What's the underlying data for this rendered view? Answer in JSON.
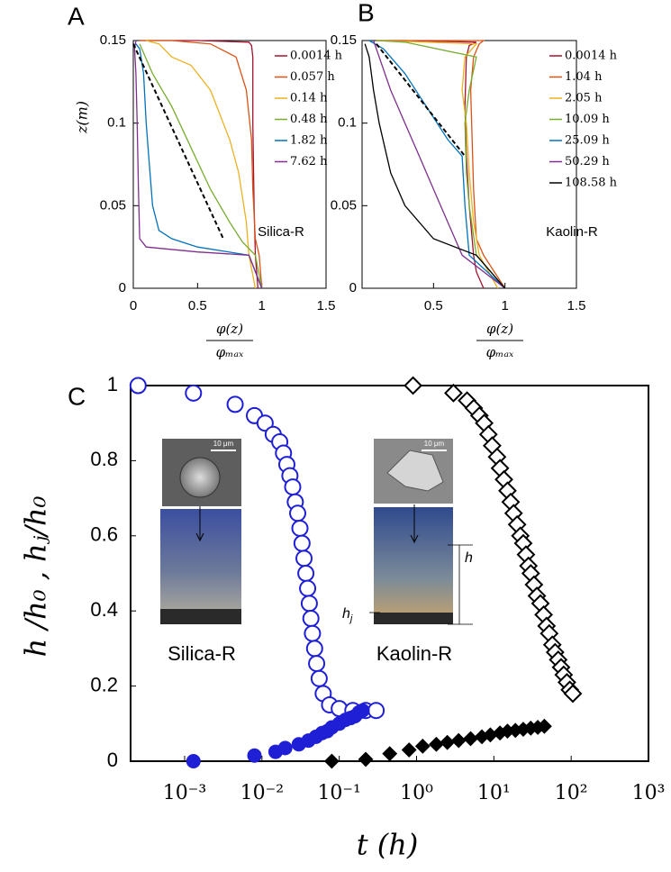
{
  "chart_data": [
    {
      "type": "line",
      "panel": "A",
      "ylabel": "z(m)",
      "xlabel": {
        "numerator": "φ(z)",
        "denominator": "φₘₐₓ"
      },
      "xlim": [
        0,
        1.5
      ],
      "ylim": [
        0,
        0.15
      ],
      "xticks": [
        0,
        0.5,
        1,
        1.5
      ],
      "yticks": [
        0,
        0.05,
        0.1,
        0.15
      ],
      "legend": "upper right",
      "annotation": "Silica-R",
      "series": [
        {
          "name": "0.0014 h",
          "color": "#a2142f",
          "x": [
            0.97,
            0.95,
            0.94,
            0.93,
            0.93,
            0.92,
            0.9,
            0.5,
            0.05
          ],
          "values": [
            0,
            0.02,
            0.05,
            0.1,
            0.14,
            0.147,
            0.149,
            0.15,
            0.15
          ]
        },
        {
          "name": "0.057 h",
          "color": "#d95319",
          "x": [
            1,
            0.98,
            0.95,
            0.93,
            0.92,
            0.88,
            0.8,
            0.6,
            0.3,
            0.05
          ],
          "values": [
            0,
            0.02,
            0.03,
            0.06,
            0.09,
            0.12,
            0.14,
            0.148,
            0.15,
            0.15
          ]
        },
        {
          "name": "0.14 h",
          "color": "#edb120",
          "x": [
            0.95,
            0.9,
            0.88,
            0.82,
            0.75,
            0.7,
            0.6,
            0.45,
            0.3,
            0.2,
            0.1
          ],
          "values": [
            0,
            0.02,
            0.04,
            0.07,
            0.09,
            0.1,
            0.12,
            0.135,
            0.14,
            0.148,
            0.15
          ]
        },
        {
          "name": "0.48 h",
          "color": "#77ac30",
          "x": [
            1,
            0.95,
            0.85,
            0.75,
            0.6,
            0.45,
            0.3,
            0.15,
            0.05
          ],
          "values": [
            0,
            0.02,
            0.028,
            0.04,
            0.06,
            0.085,
            0.11,
            0.13,
            0.148
          ]
        },
        {
          "name": "1.82 h",
          "color": "#0072bd",
          "x": [
            1,
            0.9,
            0.5,
            0.3,
            0.2,
            0.15,
            0.12,
            0.1,
            0.08,
            0.05,
            0.02
          ],
          "values": [
            0,
            0.02,
            0.025,
            0.03,
            0.035,
            0.05,
            0.08,
            0.1,
            0.13,
            0.145,
            0.148
          ]
        },
        {
          "name": "7.62 h",
          "color": "#7e2f8e",
          "x": [
            1,
            0.9,
            0.5,
            0.1,
            0.05,
            0.04,
            0.03,
            0.02,
            0.01,
            0.02
          ],
          "values": [
            0,
            0.02,
            0.022,
            0.025,
            0.03,
            0.06,
            0.1,
            0.13,
            0.145,
            0.15
          ]
        }
      ],
      "fit_line": {
        "x": [
          0,
          0.7
        ],
        "values": [
          0.148,
          0.03
        ]
      }
    },
    {
      "type": "line",
      "panel": "B",
      "xlabel": {
        "numerator": "φ(z)",
        "denominator": "φₘₐₓ"
      },
      "xlim": [
        0,
        1.5
      ],
      "ylim": [
        0,
        0.15
      ],
      "xticks": [
        0.5,
        1,
        1.5
      ],
      "yticks": [
        0,
        0.05,
        0.1,
        0.15
      ],
      "legend": "upper right",
      "annotation": "Kaolin-R",
      "series": [
        {
          "name": "0.0014 h",
          "color": "#a2142f",
          "x": [
            0.85,
            0.8,
            0.78,
            0.75,
            0.73,
            0.72,
            0.73,
            0.75,
            0.8,
            0.3,
            0.1
          ],
          "values": [
            0,
            0.01,
            0.02,
            0.05,
            0.08,
            0.11,
            0.14,
            0.147,
            0.149,
            0.15,
            0.15
          ]
        },
        {
          "name": "1.04 h",
          "color": "#d95319",
          "x": [
            1,
            0.85,
            0.8,
            0.78,
            0.77,
            0.76,
            0.78,
            0.82,
            0.85,
            0.1
          ],
          "values": [
            0,
            0.02,
            0.03,
            0.06,
            0.09,
            0.12,
            0.14,
            0.148,
            0.15,
            0.15
          ]
        },
        {
          "name": "2.05 h",
          "color": "#edb120",
          "x": [
            0.95,
            0.82,
            0.78,
            0.75,
            0.73,
            0.7,
            0.72,
            0.8,
            0.1
          ],
          "values": [
            0,
            0.02,
            0.04,
            0.07,
            0.1,
            0.12,
            0.14,
            0.148,
            0.15
          ]
        },
        {
          "name": "10.09 h",
          "color": "#77ac30",
          "x": [
            1,
            0.8,
            0.75,
            0.73,
            0.72,
            0.75,
            0.8,
            0.3,
            0.1
          ],
          "values": [
            0,
            0.02,
            0.05,
            0.07,
            0.1,
            0.12,
            0.14,
            0.149,
            0.15
          ]
        },
        {
          "name": "25.09 h",
          "color": "#0072bd",
          "x": [
            1,
            0.75,
            0.72,
            0.7,
            0.6,
            0.45,
            0.3,
            0.15,
            0.05
          ],
          "values": [
            0,
            0.02,
            0.05,
            0.08,
            0.09,
            0.11,
            0.13,
            0.145,
            0.15
          ]
        },
        {
          "name": "50.29 h",
          "color": "#7e2f8e",
          "x": [
            1,
            0.7,
            0.6,
            0.5,
            0.4,
            0.3,
            0.2,
            0.12,
            0.08
          ],
          "values": [
            0,
            0.02,
            0.04,
            0.06,
            0.08,
            0.1,
            0.12,
            0.14,
            0.15
          ]
        },
        {
          "name": "108.58 h",
          "color": "#000000",
          "x": [
            1,
            0.8,
            0.5,
            0.3,
            0.2,
            0.12,
            0.08,
            0.05,
            0.02
          ],
          "values": [
            0,
            0.02,
            0.03,
            0.05,
            0.07,
            0.1,
            0.12,
            0.14,
            0.148
          ]
        }
      ],
      "fit_line": {
        "x": [
          0.1,
          0.72
        ],
        "values": [
          0.148,
          0.08
        ]
      }
    },
    {
      "type": "scatter",
      "panel": "C",
      "ylabel": "h /h₀ , hⱼ/h₀",
      "xlabel": "t (h)",
      "log_x": true,
      "xlim": [
        0.0002,
        1000
      ],
      "ylim": [
        0,
        1
      ],
      "xticks": [
        {
          "value": 0.001,
          "label": "10⁻³"
        },
        {
          "value": 0.01,
          "label": "10⁻²"
        },
        {
          "value": 0.1,
          "label": "10⁻¹"
        },
        {
          "value": 1,
          "label": "10⁰"
        },
        {
          "value": 10,
          "label": "10¹"
        },
        {
          "value": 100,
          "label": "10²"
        },
        {
          "value": 1000,
          "label": "10³"
        }
      ],
      "yticks": [
        0,
        0.2,
        0.4,
        0.6,
        0.8,
        1
      ],
      "series": [
        {
          "color": "#1f1fd6",
          "marker": "circle",
          "filled": false,
          "x": [
            0.00025,
            0.0013,
            0.0045,
            0.008,
            0.011,
            0.014,
            0.017,
            0.019,
            0.021,
            0.023,
            0.025,
            0.027,
            0.029,
            0.031,
            0.033,
            0.035,
            0.037,
            0.039,
            0.041,
            0.043,
            0.045,
            0.048,
            0.051,
            0.055,
            0.062,
            0.075,
            0.1,
            0.15,
            0.22,
            0.3
          ],
          "values": [
            1,
            0.98,
            0.95,
            0.92,
            0.9,
            0.87,
            0.85,
            0.82,
            0.79,
            0.76,
            0.73,
            0.69,
            0.66,
            0.62,
            0.58,
            0.54,
            0.5,
            0.46,
            0.42,
            0.38,
            0.34,
            0.3,
            0.26,
            0.22,
            0.18,
            0.15,
            0.14,
            0.135,
            0.135,
            0.135
          ]
        },
        {
          "color": "#1f1fd6",
          "marker": "circle",
          "filled": true,
          "x": [
            0.0013,
            0.008,
            0.015,
            0.02,
            0.03,
            0.04,
            0.05,
            0.06,
            0.07,
            0.08,
            0.1,
            0.12,
            0.14,
            0.16,
            0.18,
            0.2
          ],
          "values": [
            0,
            0.015,
            0.025,
            0.035,
            0.045,
            0.055,
            0.065,
            0.075,
            0.08,
            0.09,
            0.1,
            0.11,
            0.115,
            0.12,
            0.13,
            0.135
          ]
        },
        {
          "color": "#000000",
          "marker": "diamond",
          "filled": false,
          "x": [
            0.9,
            3,
            4.5,
            5.5,
            6.5,
            7.5,
            8.5,
            9.5,
            11,
            12,
            13.5,
            15,
            16.5,
            18,
            20,
            22,
            24,
            26,
            28,
            30,
            33,
            36,
            40,
            44,
            48,
            52,
            57,
            62,
            68,
            74,
            80,
            88,
            96,
            105
          ],
          "values": [
            1,
            0.98,
            0.96,
            0.94,
            0.92,
            0.9,
            0.87,
            0.84,
            0.81,
            0.78,
            0.75,
            0.72,
            0.69,
            0.66,
            0.63,
            0.6,
            0.58,
            0.55,
            0.52,
            0.5,
            0.47,
            0.44,
            0.42,
            0.39,
            0.36,
            0.34,
            0.31,
            0.29,
            0.27,
            0.25,
            0.23,
            0.21,
            0.19,
            0.18
          ]
        },
        {
          "color": "#000000",
          "marker": "diamond",
          "filled": true,
          "x": [
            0.08,
            0.22,
            0.45,
            0.8,
            1.2,
            1.8,
            2.5,
            3.5,
            5,
            7,
            9,
            12,
            15,
            19,
            24,
            30,
            37,
            45
          ],
          "values": [
            0,
            0.005,
            0.02,
            0.03,
            0.04,
            0.045,
            0.05,
            0.055,
            0.06,
            0.065,
            0.07,
            0.075,
            0.08,
            0.082,
            0.085,
            0.088,
            0.09,
            0.093
          ]
        }
      ],
      "insets": [
        {
          "label": "Silica-R",
          "scale_bar": "10 μm"
        },
        {
          "label": "Kaolin-R",
          "scale_bar": "10 μm",
          "height_label": "h",
          "jam_label": "h",
          "jam_sub": "j"
        }
      ]
    }
  ]
}
